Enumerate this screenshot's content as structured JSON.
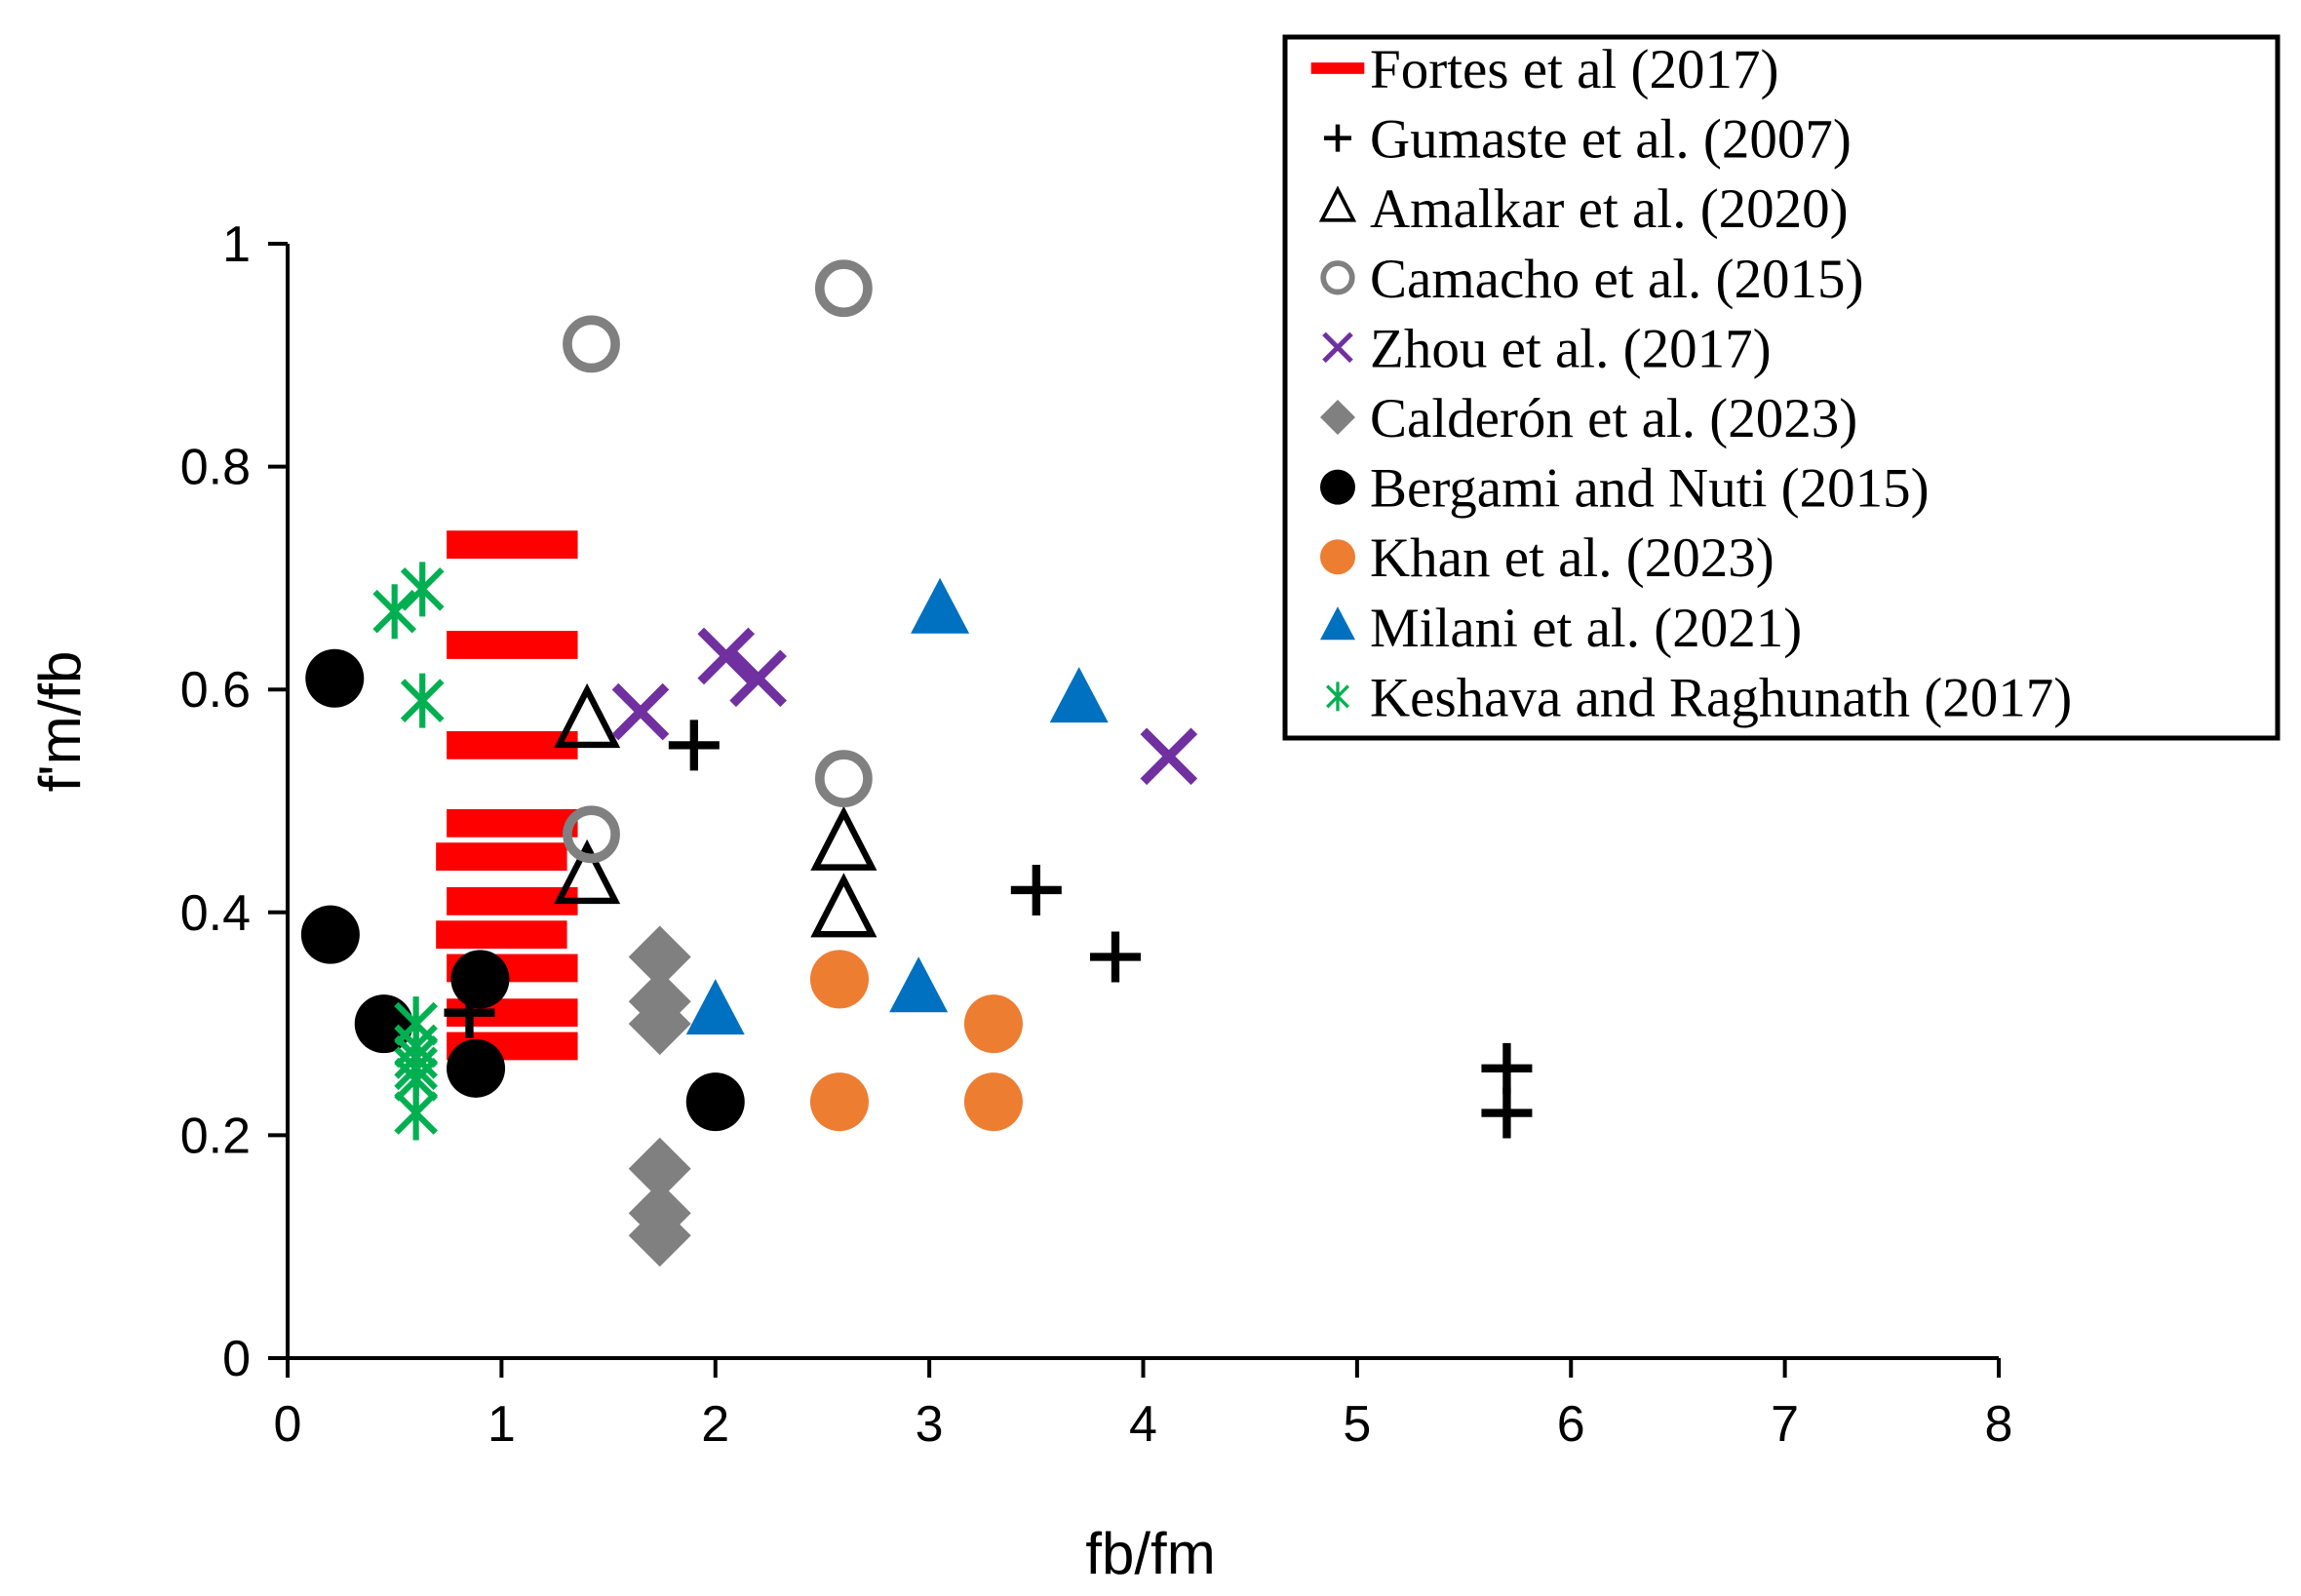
{
  "chart_data": {
    "type": "scatter",
    "title": "",
    "xlabel": "fb/fm",
    "ylabel": "f'm/fb",
    "xlim": [
      0,
      8
    ],
    "ylim": [
      0,
      1
    ],
    "xticks": [
      "0",
      "1",
      "2",
      "3",
      "4",
      "5",
      "6",
      "7",
      "8"
    ],
    "yticks": [
      "0",
      "0.2",
      "0.4",
      "0.6",
      "0.8",
      "1"
    ],
    "grid": false,
    "legend_position": "top-right",
    "series": [
      {
        "name": "Fortes et al (2017)",
        "marker": "dash",
        "color": "#ff0000",
        "points": [
          [
            1.05,
            0.73
          ],
          [
            1.05,
            0.64
          ],
          [
            1.05,
            0.55
          ],
          [
            1.05,
            0.48
          ],
          [
            1.0,
            0.45
          ],
          [
            1.05,
            0.41
          ],
          [
            1.0,
            0.38
          ],
          [
            1.05,
            0.35
          ],
          [
            1.05,
            0.31
          ],
          [
            1.05,
            0.28
          ]
        ]
      },
      {
        "name": "Gumaste et al. (2007)",
        "marker": "plus",
        "color": "#000000",
        "points": [
          [
            1.9,
            0.55
          ],
          [
            3.5,
            0.42
          ],
          [
            3.87,
            0.36
          ],
          [
            5.7,
            0.26
          ],
          [
            5.7,
            0.22
          ],
          [
            0.85,
            0.31
          ]
        ]
      },
      {
        "name": "Amalkar et al. (2020)",
        "marker": "triangle-open",
        "color": "#000000",
        "points": [
          [
            1.4,
            0.57
          ],
          [
            1.4,
            0.43
          ],
          [
            2.6,
            0.46
          ],
          [
            2.6,
            0.4
          ]
        ]
      },
      {
        "name": "Camacho et al. (2015)",
        "marker": "circle-open",
        "color": "#808080",
        "points": [
          [
            1.42,
            0.91
          ],
          [
            2.6,
            0.96
          ],
          [
            2.6,
            0.52
          ],
          [
            1.42,
            0.47
          ]
        ]
      },
      {
        "name": "Zhou et al. (2017)",
        "marker": "x",
        "color": "#7030a0",
        "points": [
          [
            1.65,
            0.58
          ],
          [
            2.05,
            0.63
          ],
          [
            2.2,
            0.61
          ],
          [
            4.12,
            0.54
          ]
        ]
      },
      {
        "name": "Calderón et al. (2023)",
        "marker": "diamond",
        "color": "#808080",
        "points": [
          [
            1.74,
            0.36
          ],
          [
            1.74,
            0.32
          ],
          [
            1.74,
            0.3
          ],
          [
            1.74,
            0.17
          ],
          [
            1.74,
            0.13
          ],
          [
            1.74,
            0.11
          ]
        ]
      },
      {
        "name": "Bergami and Nuti (2015)",
        "marker": "circle",
        "color": "#000000",
        "points": [
          [
            0.22,
            0.61
          ],
          [
            0.2,
            0.38
          ],
          [
            0.45,
            0.3
          ],
          [
            0.9,
            0.34
          ],
          [
            0.88,
            0.26
          ],
          [
            2.0,
            0.23
          ]
        ]
      },
      {
        "name": "Khan et al. (2023)",
        "marker": "circle",
        "color": "#ed7d31",
        "points": [
          [
            2.58,
            0.34
          ],
          [
            2.58,
            0.23
          ],
          [
            3.3,
            0.3
          ],
          [
            3.3,
            0.23
          ]
        ]
      },
      {
        "name": "Milani et al. (2021)",
        "marker": "triangle",
        "color": "#0070c0",
        "points": [
          [
            3.05,
            0.67
          ],
          [
            3.7,
            0.59
          ],
          [
            2.95,
            0.33
          ],
          [
            2.0,
            0.31
          ]
        ]
      },
      {
        "name": "Keshava and Raghunath (2017)",
        "marker": "asterisk",
        "color": "#00b050",
        "points": [
          [
            0.5,
            0.67
          ],
          [
            0.63,
            0.69
          ],
          [
            0.63,
            0.59
          ],
          [
            0.6,
            0.3
          ],
          [
            0.6,
            0.28
          ],
          [
            0.6,
            0.27
          ],
          [
            0.6,
            0.26
          ],
          [
            0.6,
            0.25
          ],
          [
            0.6,
            0.22
          ]
        ]
      }
    ]
  }
}
